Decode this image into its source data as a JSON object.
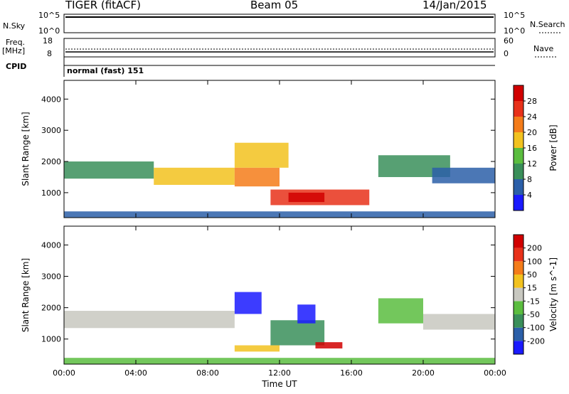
{
  "header": {
    "station": "TIGER (fitACF)",
    "beam": "Beam 05",
    "date": "14/Jan/2015"
  },
  "top_panels": {
    "nsky_label": "N.Sky",
    "nsky_ticks": [
      "10^5",
      "10^0"
    ],
    "nsearch_label": "N.Search",
    "nsearch_ticks": [
      "10^5",
      "10^0"
    ],
    "freq_label": "Freq.",
    "freq_unit": "[MHz]",
    "freq_ticks": [
      "18",
      "8"
    ],
    "nave_label": "Nave",
    "nave_ticks": [
      "60",
      "0"
    ],
    "cpid_label": "CPID",
    "cpid_value": "normal (fast) 151"
  },
  "chart_data": [
    {
      "type": "heatmap",
      "name": "power",
      "title": "",
      "xlabel": "",
      "ylabel": "Slant Range [km]",
      "xlim": [
        0,
        24
      ],
      "ylim": [
        200,
        4600
      ],
      "x_tick_labels": [
        "00:00",
        "04:00",
        "08:00",
        "12:00",
        "16:00",
        "20:00",
        "00:00"
      ],
      "y_tick_labels": [
        "1000",
        "2000",
        "3000",
        "4000"
      ],
      "colorbar": {
        "label": "Power [dB]",
        "ticks": [
          "4",
          "8",
          "12",
          "16",
          "20",
          "24",
          "28"
        ],
        "colors": [
          "#1a1aff",
          "#2b5fa8",
          "#3a8f5a",
          "#5bbd3f",
          "#f2c21f",
          "#f47c1a",
          "#e8311a",
          "#d10000"
        ]
      },
      "regions": [
        {
          "t0": 0.0,
          "t1": 5.0,
          "r0": 1450,
          "r1": 2000,
          "level": 2
        },
        {
          "t0": 5.0,
          "t1": 9.5,
          "r0": 1250,
          "r1": 1800,
          "level": 4
        },
        {
          "t0": 9.5,
          "t1": 12.0,
          "r0": 1200,
          "r1": 1800,
          "level": 5
        },
        {
          "t0": 11.5,
          "t1": 17.0,
          "r0": 600,
          "r1": 1100,
          "level": 6
        },
        {
          "t0": 12.5,
          "t1": 14.5,
          "r0": 700,
          "r1": 1000,
          "level": 7
        },
        {
          "t0": 9.5,
          "t1": 12.5,
          "r0": 1800,
          "r1": 2600,
          "level": 4
        },
        {
          "t0": 17.5,
          "t1": 21.5,
          "r0": 1500,
          "r1": 2200,
          "level": 2
        },
        {
          "t0": 20.5,
          "t1": 24.0,
          "r0": 1300,
          "r1": 1800,
          "level": 1
        },
        {
          "t0": 0.0,
          "t1": 24.0,
          "r0": 200,
          "r1": 400,
          "level": 1
        }
      ]
    },
    {
      "type": "heatmap",
      "name": "velocity",
      "title": "",
      "xlabel": "Time UT",
      "ylabel": "Slant Range [km]",
      "xlim": [
        0,
        24
      ],
      "ylim": [
        200,
        4600
      ],
      "x_tick_labels": [
        "00:00",
        "04:00",
        "08:00",
        "12:00",
        "16:00",
        "20:00",
        "00:00"
      ],
      "y_tick_labels": [
        "1000",
        "2000",
        "3000",
        "4000"
      ],
      "colorbar": {
        "label": "Velocity [m s^-1]",
        "ticks": [
          "200",
          "100",
          "50",
          "15",
          "-15",
          "-50",
          "-100",
          "-200"
        ],
        "colors": [
          "#1a1aff",
          "#2b5fa8",
          "#3a8f5a",
          "#5bbd3f",
          "#c8c8c0",
          "#f2c21f",
          "#f47c1a",
          "#e8311a",
          "#d10000"
        ]
      },
      "regions": [
        {
          "t0": 0.0,
          "t1": 9.5,
          "r0": 1350,
          "r1": 1900,
          "level": 4
        },
        {
          "t0": 9.5,
          "t1": 11.0,
          "r0": 1800,
          "r1": 2500,
          "level": 0
        },
        {
          "t0": 11.5,
          "t1": 14.5,
          "r0": 800,
          "r1": 1600,
          "level": 2
        },
        {
          "t0": 13.0,
          "t1": 14.0,
          "r0": 1500,
          "r1": 2100,
          "level": 0
        },
        {
          "t0": 9.5,
          "t1": 12.0,
          "r0": 600,
          "r1": 800,
          "level": 5
        },
        {
          "t0": 14.0,
          "t1": 15.5,
          "r0": 700,
          "r1": 900,
          "level": 8
        },
        {
          "t0": 17.5,
          "t1": 20.0,
          "r0": 1500,
          "r1": 2300,
          "level": 3
        },
        {
          "t0": 20.0,
          "t1": 24.0,
          "r0": 1300,
          "r1": 1800,
          "level": 4
        },
        {
          "t0": 0.0,
          "t1": 24.0,
          "r0": 200,
          "r1": 400,
          "level": 3
        }
      ]
    }
  ]
}
